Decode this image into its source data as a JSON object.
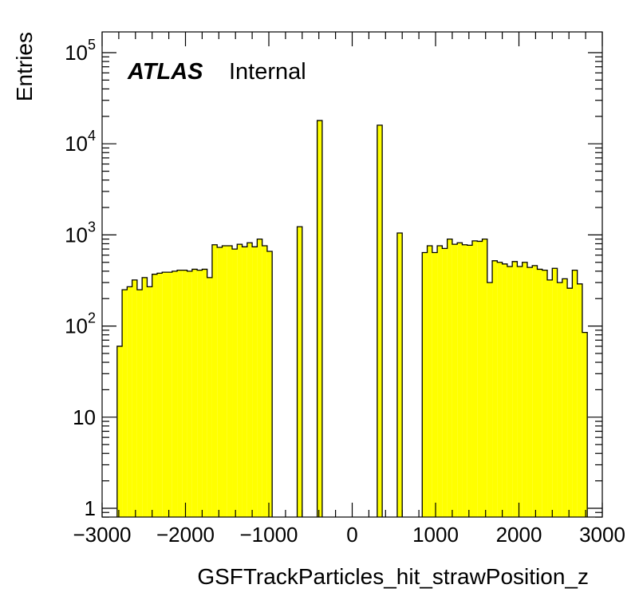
{
  "chart_data": {
    "type": "bar",
    "histogram": true,
    "xlabel": "GSFTrackParticles_hit_strawPosition_z",
    "ylabel": "Entries",
    "xlim": [
      -3000,
      3000
    ],
    "ylim": [
      0.8,
      170000
    ],
    "yscale": "log",
    "grid": false,
    "x_ticks": [
      -3000,
      -2000,
      -1000,
      0,
      1000,
      2000,
      3000
    ],
    "x_tick_labels": [
      "−3000",
      "−2000",
      "−1000",
      "0",
      "1000",
      "2000",
      "3000"
    ],
    "y_ticks": [
      1,
      10,
      100,
      1000,
      10000,
      100000
    ],
    "y_tick_labels": [
      {
        "base": "1",
        "exp": ""
      },
      {
        "base": "10",
        "exp": ""
      },
      {
        "base": "10",
        "exp": "2"
      },
      {
        "base": "10",
        "exp": "3"
      },
      {
        "base": "10",
        "exp": "4"
      },
      {
        "base": "10",
        "exp": "5"
      }
    ],
    "bin_width": 60,
    "bins_start": [
      -2820,
      -2760,
      -2700,
      -2640,
      -2580,
      -2520,
      -2460,
      -2400,
      -2340,
      -2280,
      -2220,
      -2160,
      -2100,
      -2040,
      -1980,
      -1920,
      -1860,
      -1800,
      -1740,
      -1680,
      -1620,
      -1560,
      -1500,
      -1440,
      -1380,
      -1320,
      -1260,
      -1200,
      -1140,
      -1080,
      -1020,
      -660,
      -420,
      300,
      540,
      840,
      900,
      960,
      1020,
      1080,
      1140,
      1200,
      1260,
      1320,
      1380,
      1440,
      1500,
      1560,
      1620,
      1680,
      1740,
      1800,
      1860,
      1920,
      1980,
      2040,
      2100,
      2160,
      2220,
      2280,
      2340,
      2400,
      2460,
      2520,
      2580,
      2640,
      2700,
      2760
    ],
    "values": [
      60,
      250,
      270,
      320,
      250,
      340,
      270,
      370,
      380,
      390,
      390,
      400,
      410,
      410,
      400,
      420,
      410,
      420,
      340,
      780,
      730,
      760,
      760,
      700,
      790,
      740,
      820,
      740,
      900,
      760,
      660,
      1230,
      18000,
      16000,
      1050,
      640,
      760,
      640,
      760,
      710,
      900,
      790,
      820,
      780,
      770,
      860,
      850,
      900,
      300,
      520,
      500,
      480,
      450,
      510,
      450,
      500,
      440,
      460,
      420,
      410,
      320,
      430,
      300,
      330,
      260,
      410,
      290,
      85
    ],
    "bar_color": "#ffff00",
    "edge_color": "#000000",
    "annotations": {
      "atlas": "ATLAS",
      "label": "Internal"
    }
  }
}
